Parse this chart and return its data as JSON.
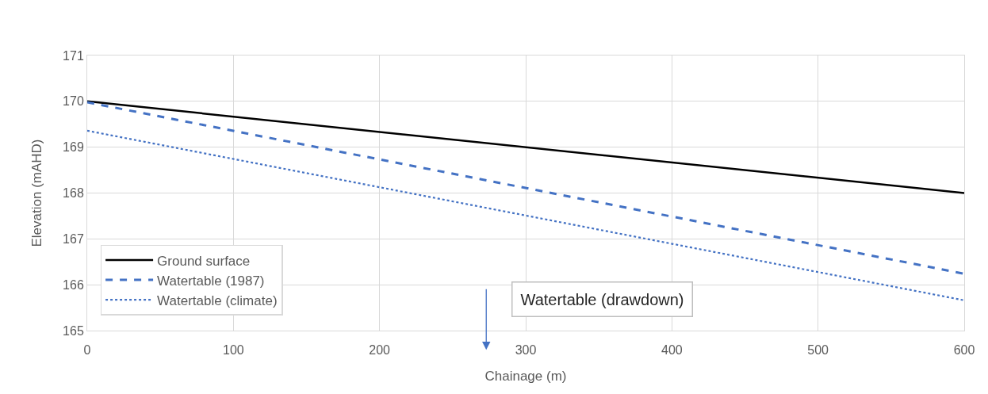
{
  "chart_data": {
    "type": "line",
    "xlabel": "Chainage (m)",
    "ylabel": "Elevation (mAHD)",
    "x": [
      0,
      600
    ],
    "series": [
      {
        "name": "Ground surface",
        "color": "#000000",
        "values": [
          170.0,
          168.0
        ],
        "line_style": "solid"
      },
      {
        "name": "Watertable (1987)",
        "color": "#4472c4",
        "values": [
          169.98,
          166.24
        ],
        "line_style": "dashed"
      },
      {
        "name": "Watertable (climate)",
        "color": "#4472c4",
        "values": [
          169.36,
          165.66
        ],
        "line_style": "dotted"
      }
    ],
    "xlim": [
      0,
      600
    ],
    "xticks": [
      0,
      100,
      200,
      300,
      400,
      500,
      600
    ],
    "ylim": [
      165,
      171
    ],
    "yticks": [
      165,
      166,
      167,
      168,
      169,
      170,
      171
    ],
    "grid": true,
    "legend": "bottom left",
    "marker": "none",
    "annotations": [
      "Watertable (drawdown)"
    ]
  }
}
